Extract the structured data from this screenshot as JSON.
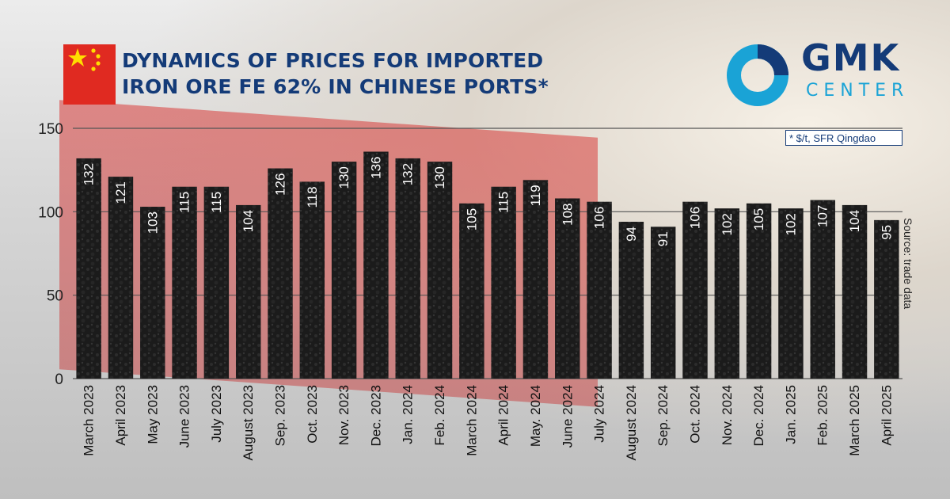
{
  "header": {
    "title_line1": "DYNAMICS OF PRICES FOR IMPORTED",
    "title_line2": "IRON ORE FE 62% IN CHINESE PORTS*"
  },
  "logo": {
    "name": "GMK",
    "sub": "CENTER"
  },
  "note": "* $/t, SFR Qingdao",
  "source": "Source: trade data",
  "colors": {
    "title": "#143b78",
    "accent": "#1aa3d6",
    "bar": "#1b1b1b",
    "flag_red": "#e02a21",
    "flag_star": "#ffde00"
  },
  "icons": [
    "china-flag-icon",
    "gmk-logo-icon"
  ],
  "chart_data": {
    "type": "bar",
    "title": "DYNAMICS OF PRICES FOR IMPORTED IRON ORE FE 62% IN CHINESE PORTS*",
    "xlabel": "",
    "ylabel": "",
    "ylim": [
      0,
      150
    ],
    "yticks": [
      0,
      50,
      100,
      150
    ],
    "grid": true,
    "categories": [
      "March 2023",
      "April 2023",
      "May 2023",
      "June 2023",
      "July 2023",
      "August 2023",
      "Sep. 2023",
      "Oct. 2023",
      "Nov. 2023",
      "Dec. 2023",
      "Jan. 2024",
      "Feb. 2024",
      "March 2024",
      "April 2024",
      "May. 2024",
      "June 2024",
      "July 2024",
      "August 2024",
      "Sep. 2024",
      "Oct. 2024",
      "Nov. 2024",
      "Dec. 2024",
      "Jan. 2025",
      "Feb. 2025",
      "March 2025",
      "April 2025"
    ],
    "values": [
      132,
      121,
      103,
      115,
      115,
      104,
      126,
      118,
      130,
      136,
      132,
      130,
      105,
      115,
      119,
      108,
      106,
      94,
      91,
      106,
      102,
      105,
      102,
      107,
      104,
      95
    ]
  }
}
